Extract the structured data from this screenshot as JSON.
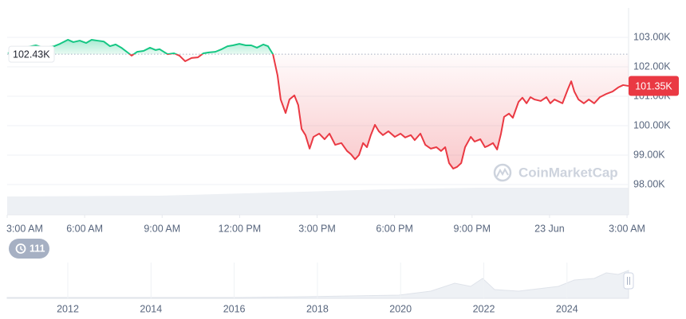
{
  "chart_data": {
    "type": "line",
    "x": [
      0.03,
      0.34,
      0.65,
      1.11,
      1.42,
      1.82,
      2.04,
      2.35,
      2.56,
      2.81,
      3.06,
      3.27,
      3.49,
      3.74,
      3.98,
      4.2,
      4.42,
      4.66,
      4.82,
      5.03,
      5.28,
      5.53,
      5.75,
      5.9,
      6.21,
      6.46,
      6.67,
      6.89,
      7.14,
      7.38,
      7.6,
      7.81,
      8.06,
      8.31,
      8.53,
      8.74,
      8.99,
      9.24,
      9.45,
      9.67,
      9.92,
      10.1,
      10.29,
      10.47,
      10.59,
      10.78,
      10.93,
      11.12,
      11.27,
      11.4,
      11.55,
      11.71,
      11.86,
      12.08,
      12.29,
      12.48,
      12.7,
      12.94,
      13.16,
      13.31,
      13.47,
      13.62,
      13.78,
      13.93,
      14.08,
      14.24,
      14.39,
      14.55,
      14.76,
      15.01,
      15.23,
      15.41,
      15.63,
      15.78,
      16.0,
      16.19,
      16.4,
      16.62,
      16.8,
      16.96,
      17.11,
      17.27,
      17.42,
      17.58,
      17.73,
      17.95,
      18.1,
      18.32,
      18.5,
      18.63,
      18.81,
      18.97,
      19.12,
      19.24,
      19.43,
      19.58,
      19.8,
      19.95,
      20.11,
      20.26,
      20.42,
      20.66,
      20.88,
      21.03,
      21.19,
      21.5,
      21.71,
      21.84,
      21.96,
      22.12,
      22.33,
      22.52,
      22.73,
      22.95,
      23.2,
      23.44,
      23.66,
      23.85,
      24.06
    ],
    "values": [
      102460,
      102600,
      102650,
      102730,
      102650,
      102700,
      102780,
      102920,
      102840,
      102890,
      102810,
      102920,
      102890,
      102860,
      102700,
      102760,
      102650,
      102490,
      102380,
      102510,
      102540,
      102650,
      102570,
      102600,
      102430,
      102460,
      102380,
      102190,
      102300,
      102320,
      102460,
      102490,
      102510,
      102600,
      102700,
      102730,
      102780,
      102730,
      102730,
      102650,
      102760,
      102700,
      102430,
      101700,
      100890,
      100430,
      100890,
      101030,
      100700,
      99890,
      99680,
      99220,
      99620,
      99730,
      99540,
      99730,
      99350,
      99410,
      99140,
      99030,
      98860,
      99000,
      99410,
      99270,
      99680,
      100030,
      99810,
      99680,
      99810,
      99620,
      99730,
      99600,
      99680,
      99510,
      99730,
      99350,
      99220,
      99270,
      99140,
      99270,
      98730,
      98540,
      98600,
      98730,
      99270,
      99620,
      99460,
      99540,
      99270,
      99320,
      99410,
      99190,
      99730,
      100300,
      100410,
      100270,
      100810,
      100950,
      100760,
      100970,
      100890,
      100840,
      100970,
      100760,
      100890,
      100760,
      101240,
      101510,
      101160,
      100890,
      100760,
      100890,
      100760,
      100970,
      101080,
      101160,
      101300,
      101380,
      101350
    ],
    "colors": {
      "above": "#16c784",
      "below": "#ea3943"
    },
    "baseline": {
      "value": 102430,
      "label": "102.43K"
    },
    "last_value": {
      "value": 101350,
      "label": "101.35K"
    },
    "xlim": [
      0,
      24.06
    ],
    "xticks": [
      {
        "value": 0,
        "label": "3:00 AM"
      },
      {
        "value": 3,
        "label": "6:00 AM"
      },
      {
        "value": 6,
        "label": "9:00 AM"
      },
      {
        "value": 9,
        "label": "12:00 PM"
      },
      {
        "value": 12,
        "label": "3:00 PM"
      },
      {
        "value": 15,
        "label": "6:00 PM"
      },
      {
        "value": 18,
        "label": "9:00 PM"
      },
      {
        "value": 21,
        "label": "23 Jun"
      },
      {
        "value": 24,
        "label": "3:00 AM"
      }
    ],
    "ylim": [
      97000,
      104000
    ],
    "yticks": [
      {
        "value": 98000,
        "label": "98.00K"
      },
      {
        "value": 99000,
        "label": "99.00K"
      },
      {
        "value": 100000,
        "label": "100.00K"
      },
      {
        "value": 101000,
        "label": "101.00K"
      },
      {
        "value": 102000,
        "label": "102.00K"
      },
      {
        "value": 103000,
        "label": "103.00K"
      }
    ],
    "grid": true,
    "watermark": "CoinMarketCap"
  },
  "history_badge": "111",
  "navigator": {
    "xticks": [
      "2012",
      "2014",
      "2016",
      "2018",
      "2020",
      "2022",
      "2024"
    ]
  }
}
